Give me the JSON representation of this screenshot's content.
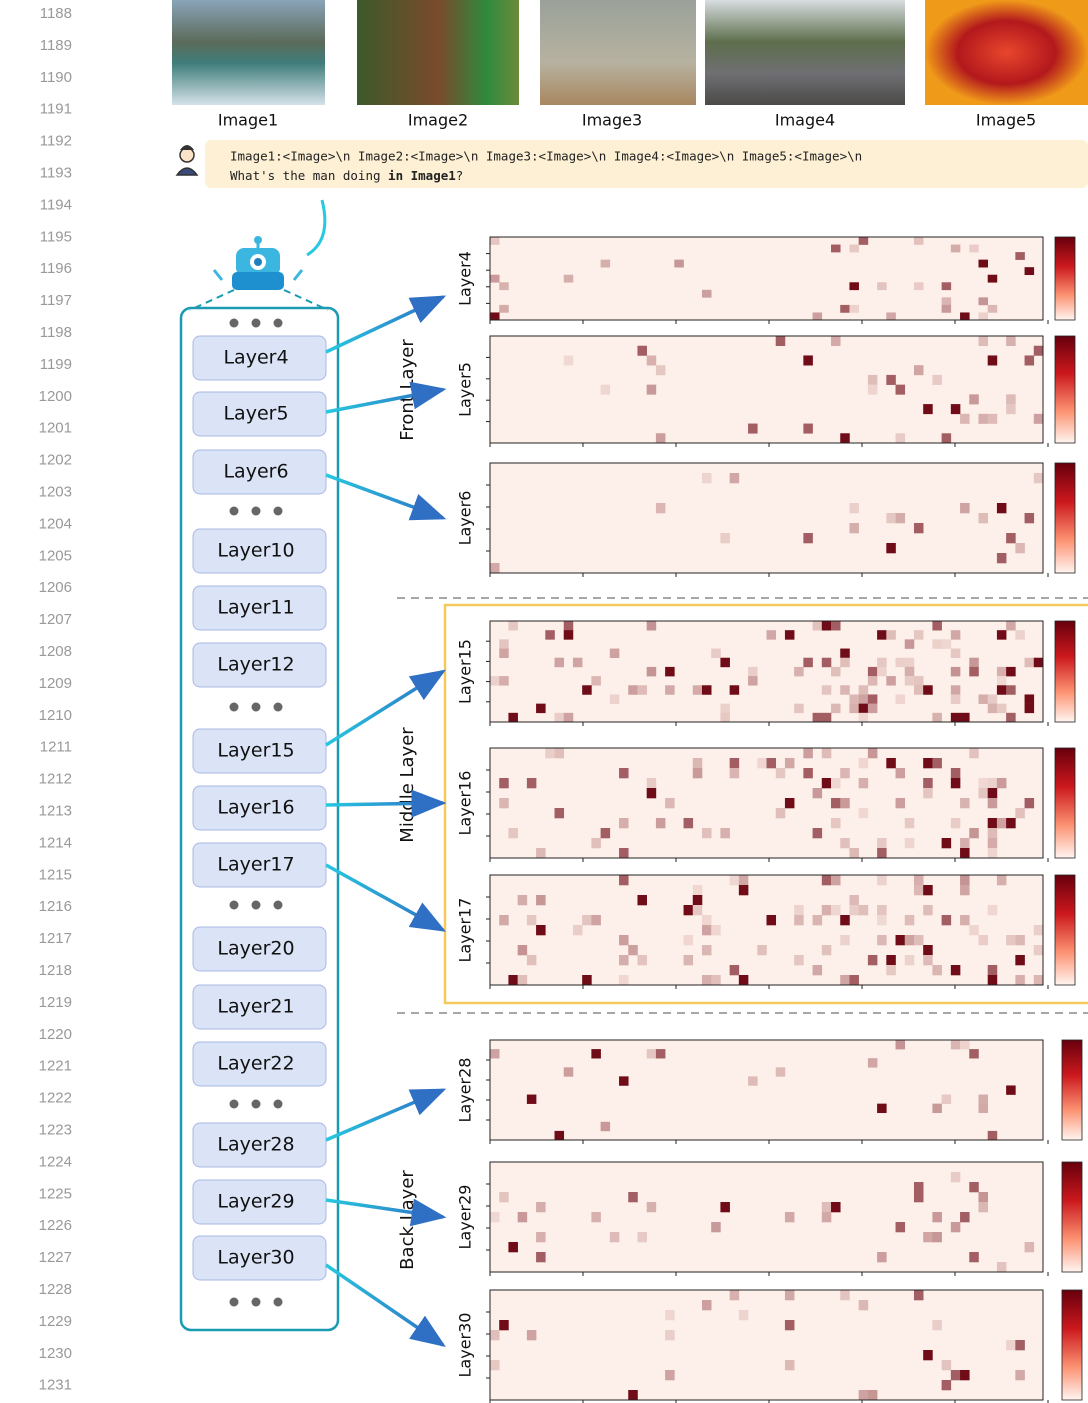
{
  "line_numbers": [
    1188,
    1189,
    1190,
    1191,
    1192,
    1193,
    1194,
    1195,
    1196,
    1197,
    1198,
    1199,
    1200,
    1201,
    1202,
    1203,
    1204,
    1205,
    1206,
    1207,
    1208,
    1209,
    1210,
    1211,
    1212,
    1213,
    1214,
    1215,
    1216,
    1217,
    1218,
    1219,
    1220,
    1221,
    1222,
    1223,
    1224,
    1225,
    1226,
    1227,
    1228,
    1229,
    1230,
    1231
  ],
  "images": [
    {
      "label": "Image1"
    },
    {
      "label": "Image2"
    },
    {
      "label": "Image3"
    },
    {
      "label": "Image4"
    },
    {
      "label": "Image5"
    }
  ],
  "prompt": {
    "line1": "Image1:<Image>\\n Image2:<Image>\\n Image3:<Image>\\n Image4:<Image>\\n Image5:<Image>\\n",
    "line2_prefix": "What's the man doing ",
    "line2_bold": "in Image1",
    "line2_suffix": "?"
  },
  "layer_stack": [
    "Layer4",
    "Layer5",
    "Layer6",
    "Layer10",
    "Layer11",
    "Layer12",
    "Layer15",
    "Layer16",
    "Layer17",
    "Layer20",
    "Layer21",
    "Layer22",
    "Layer28",
    "Layer29",
    "Layer30"
  ],
  "groups": [
    "Front Layer",
    "Middle Layer",
    "Back Layer"
  ],
  "heatmaps": [
    {
      "label": "Layer4"
    },
    {
      "label": "Layer5"
    },
    {
      "label": "Layer6"
    },
    {
      "label": "Layer15"
    },
    {
      "label": "Layer16"
    },
    {
      "label": "Layer17"
    },
    {
      "label": "Layer28"
    },
    {
      "label": "Layer29"
    },
    {
      "label": "Layer30"
    }
  ]
}
